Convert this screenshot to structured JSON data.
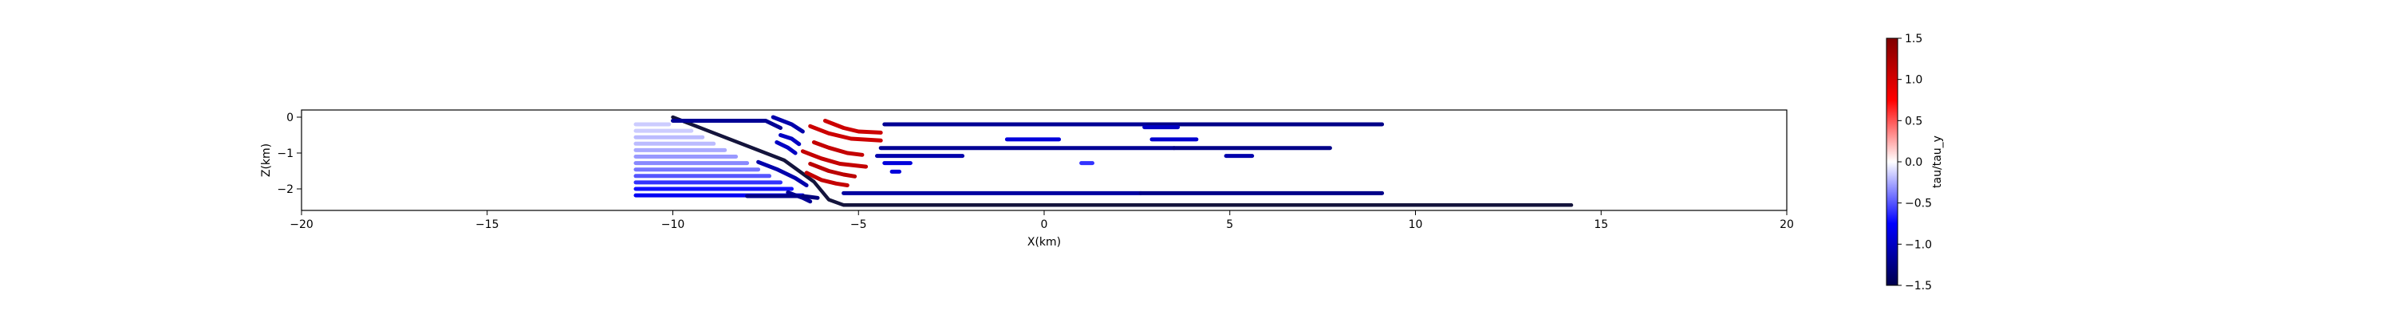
{
  "chart_data": {
    "type": "scatter",
    "title": "",
    "xlabel": "X(km)",
    "ylabel": "Z(km)",
    "xlim": [
      -20,
      20
    ],
    "ylim": [
      -2.6,
      0.2
    ],
    "x_ticks": [
      -20,
      -15,
      -10,
      -5,
      0,
      5,
      10,
      15,
      20
    ],
    "x_tick_labels": [
      "−20",
      "−15",
      "−10",
      "−5",
      "0",
      "5",
      "10",
      "15",
      "20"
    ],
    "y_ticks": [
      0,
      -1,
      -2
    ],
    "y_tick_labels": [
      "0",
      "−1",
      "−2"
    ],
    "grid": false,
    "legend": "none",
    "colormap": "seismic",
    "colors": {
      "dark_blue": "#00004c",
      "blue": "#0000ff",
      "white": "#ffffff",
      "red": "#ff0000",
      "dark_red": "#800000",
      "fault": "#14143c"
    },
    "colorbar": {
      "label": "tau/tau_y",
      "range": [
        -1.5,
        1.5
      ],
      "ticks": [
        1.5,
        1.0,
        0.5,
        0.0,
        -0.5,
        -1.0,
        -1.5
      ],
      "tick_labels": [
        "1.5",
        "1.0",
        "0.5",
        "0.0",
        "−0.5",
        "−1.0",
        "−1.5"
      ]
    },
    "series": [
      {
        "kind": "fault",
        "value": -1.5,
        "points": [
          [
            -10.0,
            0.0
          ],
          [
            -7.0,
            -1.2
          ],
          [
            -6.2,
            -1.8
          ],
          [
            -5.8,
            -2.3
          ],
          [
            -5.4,
            -2.45
          ],
          [
            14.2,
            -2.45
          ]
        ]
      },
      {
        "kind": "seg",
        "value": -0.15,
        "points": [
          [
            -11,
            -0.2
          ],
          [
            -10.1,
            -0.2
          ]
        ]
      },
      {
        "kind": "seg",
        "value": -0.15,
        "points": [
          [
            -11,
            -0.38
          ],
          [
            -9.5,
            -0.38
          ]
        ]
      },
      {
        "kind": "seg",
        "value": -0.2,
        "points": [
          [
            -11,
            -0.56
          ],
          [
            -9.2,
            -0.56
          ]
        ]
      },
      {
        "kind": "seg",
        "value": -0.2,
        "points": [
          [
            -11,
            -0.74
          ],
          [
            -8.9,
            -0.74
          ]
        ]
      },
      {
        "kind": "seg",
        "value": -0.25,
        "points": [
          [
            -11,
            -0.92
          ],
          [
            -8.6,
            -0.92
          ]
        ]
      },
      {
        "kind": "seg",
        "value": -0.3,
        "points": [
          [
            -11,
            -1.1
          ],
          [
            -8.3,
            -1.1
          ]
        ]
      },
      {
        "kind": "seg",
        "value": -0.35,
        "points": [
          [
            -11,
            -1.28
          ],
          [
            -8.0,
            -1.28
          ]
        ]
      },
      {
        "kind": "seg",
        "value": -0.4,
        "points": [
          [
            -11,
            -1.46
          ],
          [
            -7.7,
            -1.46
          ]
        ]
      },
      {
        "kind": "seg",
        "value": -0.5,
        "points": [
          [
            -11,
            -1.64
          ],
          [
            -7.4,
            -1.64
          ]
        ]
      },
      {
        "kind": "seg",
        "value": -0.6,
        "points": [
          [
            -11,
            -1.82
          ],
          [
            -7.1,
            -1.82
          ]
        ]
      },
      {
        "kind": "seg",
        "value": -0.7,
        "points": [
          [
            -11,
            -2.0
          ],
          [
            -6.8,
            -2.0
          ]
        ]
      },
      {
        "kind": "seg",
        "value": -0.8,
        "points": [
          [
            -11,
            -2.18
          ],
          [
            -6.5,
            -2.18
          ]
        ]
      },
      {
        "kind": "seg",
        "value": -1.2,
        "points": [
          [
            -10.0,
            -0.1
          ],
          [
            -7.5,
            -0.1
          ],
          [
            -7.3,
            -0.2
          ],
          [
            -7.1,
            -0.3
          ]
        ]
      },
      {
        "kind": "seg",
        "value": -1.1,
        "points": [
          [
            -7.3,
            0.0
          ],
          [
            -6.8,
            -0.2
          ],
          [
            -6.5,
            -0.4
          ]
        ]
      },
      {
        "kind": "seg",
        "value": -1.0,
        "points": [
          [
            -7.1,
            -0.5
          ],
          [
            -6.8,
            -0.6
          ],
          [
            -6.6,
            -0.75
          ]
        ]
      },
      {
        "kind": "seg",
        "value": -1.0,
        "points": [
          [
            -7.2,
            -0.7
          ],
          [
            -6.9,
            -0.85
          ],
          [
            -6.7,
            -1.0
          ]
        ]
      },
      {
        "kind": "seg",
        "value": -1.1,
        "points": [
          [
            -7.7,
            -1.25
          ],
          [
            -7.2,
            -1.45
          ],
          [
            -6.7,
            -1.7
          ],
          [
            -6.4,
            -1.9
          ]
        ]
      },
      {
        "kind": "seg",
        "value": -1.2,
        "points": [
          [
            -6.9,
            -2.1
          ],
          [
            -6.5,
            -2.25
          ],
          [
            -6.3,
            -2.35
          ]
        ]
      },
      {
        "kind": "seg",
        "value": -1.3,
        "points": [
          [
            -6.5,
            -2.2
          ],
          [
            -6.1,
            -2.25
          ]
        ]
      },
      {
        "kind": "seg",
        "value": -1.25,
        "points": [
          [
            -8.0,
            -2.2
          ],
          [
            -6.6,
            -2.2
          ]
        ]
      },
      {
        "kind": "seg",
        "value": 1.05,
        "points": [
          [
            -5.9,
            -0.1
          ],
          [
            -5.4,
            -0.3
          ],
          [
            -5.0,
            -0.4
          ],
          [
            -4.4,
            -0.43
          ]
        ]
      },
      {
        "kind": "seg",
        "value": 1.05,
        "points": [
          [
            -6.3,
            -0.25
          ],
          [
            -5.8,
            -0.45
          ],
          [
            -5.2,
            -0.6
          ],
          [
            -4.4,
            -0.65
          ]
        ]
      },
      {
        "kind": "seg",
        "value": 1.1,
        "points": [
          [
            -6.2,
            -0.7
          ],
          [
            -5.8,
            -0.85
          ],
          [
            -5.3,
            -1.0
          ],
          [
            -4.9,
            -1.05
          ]
        ]
      },
      {
        "kind": "seg",
        "value": 1.1,
        "points": [
          [
            -6.5,
            -0.95
          ],
          [
            -6.0,
            -1.15
          ],
          [
            -5.5,
            -1.3
          ],
          [
            -4.8,
            -1.38
          ]
        ]
      },
      {
        "kind": "seg",
        "value": 1.15,
        "points": [
          [
            -6.3,
            -1.3
          ],
          [
            -5.8,
            -1.5
          ],
          [
            -5.4,
            -1.6
          ],
          [
            -5.1,
            -1.65
          ]
        ]
      },
      {
        "kind": "seg",
        "value": 1.1,
        "points": [
          [
            -6.4,
            -1.55
          ],
          [
            -6.0,
            -1.75
          ],
          [
            -5.6,
            -1.85
          ],
          [
            -5.3,
            -1.9
          ]
        ]
      },
      {
        "kind": "seg",
        "value": -1.2,
        "points": [
          [
            -4.3,
            -0.2
          ],
          [
            2.8,
            -0.2
          ]
        ]
      },
      {
        "kind": "seg",
        "value": -1.25,
        "points": [
          [
            2.8,
            -0.2
          ],
          [
            9.1,
            -0.2
          ]
        ]
      },
      {
        "kind": "seg",
        "value": -1.0,
        "points": [
          [
            2.7,
            -0.28
          ],
          [
            3.6,
            -0.28
          ]
        ]
      },
      {
        "kind": "seg",
        "value": -0.9,
        "points": [
          [
            -1.0,
            -0.62
          ],
          [
            0.4,
            -0.62
          ]
        ]
      },
      {
        "kind": "seg",
        "value": -0.95,
        "points": [
          [
            2.9,
            -0.62
          ],
          [
            4.1,
            -0.62
          ]
        ]
      },
      {
        "kind": "seg",
        "value": -1.2,
        "points": [
          [
            -4.4,
            -0.86
          ],
          [
            3.5,
            -0.86
          ]
        ]
      },
      {
        "kind": "seg",
        "value": -1.25,
        "points": [
          [
            3.5,
            -0.86
          ],
          [
            7.7,
            -0.86
          ]
        ]
      },
      {
        "kind": "seg",
        "value": -1.1,
        "points": [
          [
            -4.5,
            -1.08
          ],
          [
            -2.2,
            -1.08
          ]
        ]
      },
      {
        "kind": "seg",
        "value": -1.1,
        "points": [
          [
            4.9,
            -1.08
          ],
          [
            5.6,
            -1.08
          ]
        ]
      },
      {
        "kind": "seg",
        "value": -0.9,
        "points": [
          [
            -4.3,
            -1.28
          ],
          [
            -3.6,
            -1.28
          ]
        ]
      },
      {
        "kind": "seg",
        "value": -0.6,
        "points": [
          [
            1.0,
            -1.28
          ],
          [
            1.3,
            -1.28
          ]
        ]
      },
      {
        "kind": "seg",
        "value": -0.9,
        "points": [
          [
            -4.1,
            -1.52
          ],
          [
            -3.9,
            -1.52
          ]
        ]
      },
      {
        "kind": "seg",
        "value": -1.15,
        "points": [
          [
            -5.4,
            -2.12
          ],
          [
            2.6,
            -2.12
          ]
        ]
      },
      {
        "kind": "seg",
        "value": -1.25,
        "points": [
          [
            2.6,
            -2.12
          ],
          [
            9.1,
            -2.12
          ]
        ]
      }
    ]
  }
}
